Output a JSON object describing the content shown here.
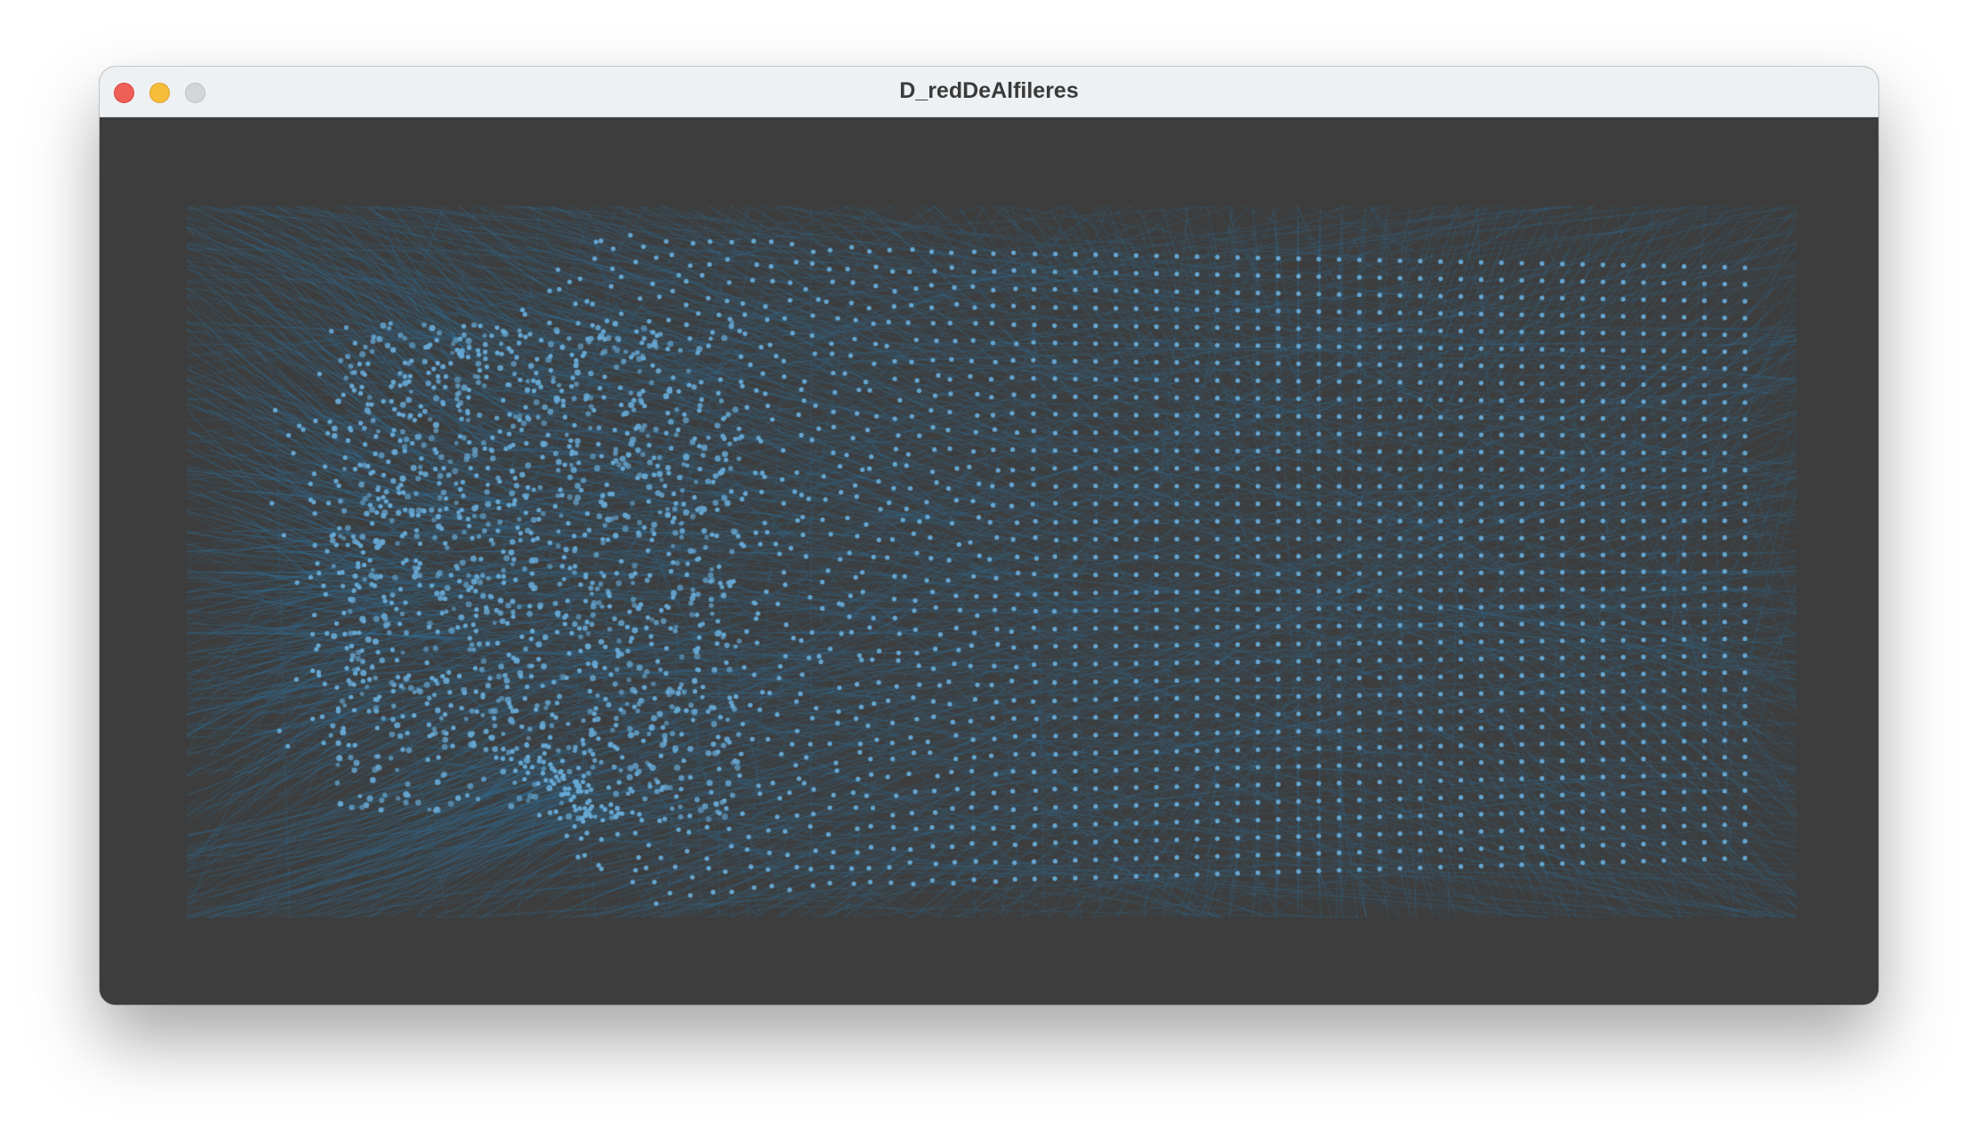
{
  "window": {
    "title": "D_redDeAlfileres"
  },
  "traffic_lights": {
    "close_color": "#ee5f58",
    "minimize_color": "#f6bd3b",
    "zoom_color": "#d3d6d8"
  },
  "sketch": {
    "background_color": "#3d3d3d",
    "line_color": "#2f6f9a",
    "dot_color": "#67a7d2"
  }
}
